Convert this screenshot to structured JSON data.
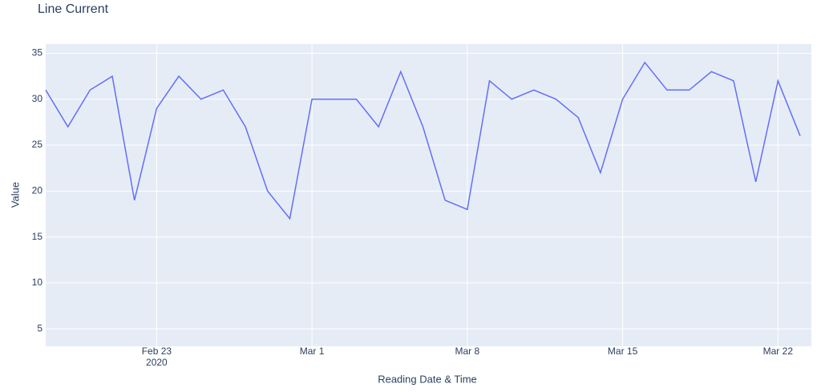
{
  "chart_data": {
    "type": "line",
    "title": "Line Current",
    "x_label": "Reading Date & Time",
    "y_label": "Value",
    "x": [
      "2020-02-18",
      "2020-02-19",
      "2020-02-20",
      "2020-02-21",
      "2020-02-22",
      "2020-02-23",
      "2020-02-24",
      "2020-02-25",
      "2020-02-26",
      "2020-02-27",
      "2020-02-28",
      "2020-02-29",
      "2020-03-01",
      "2020-03-02",
      "2020-03-03",
      "2020-03-04",
      "2020-03-05",
      "2020-03-06",
      "2020-03-07",
      "2020-03-08",
      "2020-03-09",
      "2020-03-10",
      "2020-03-11",
      "2020-03-12",
      "2020-03-13",
      "2020-03-14",
      "2020-03-15",
      "2020-03-16",
      "2020-03-17",
      "2020-03-18",
      "2020-03-19",
      "2020-03-20",
      "2020-03-21",
      "2020-03-22",
      "2020-03-23"
    ],
    "series": [
      {
        "name": "Value",
        "color": "#636efa",
        "values": [
          31,
          27,
          31,
          32.5,
          19,
          29,
          32.5,
          30,
          31,
          27,
          20,
          17,
          30,
          30,
          30,
          27,
          33,
          27,
          19,
          18,
          32,
          30,
          31,
          30,
          28,
          22,
          30,
          34,
          31,
          31,
          33,
          32,
          21,
          32,
          26
        ]
      }
    ],
    "xlim": [
      "2020-02-18",
      "2020-03-23"
    ],
    "xticks": [
      {
        "value": "2020-02-23",
        "label": "Feb 23"
      },
      {
        "value": "2020-03-01",
        "label": "Mar 1"
      },
      {
        "value": "2020-03-08",
        "label": "Mar 8"
      },
      {
        "value": "2020-03-15",
        "label": "Mar 15"
      },
      {
        "value": "2020-03-22",
        "label": "Mar 22"
      }
    ],
    "x_year_label": "2020",
    "ylim": [
      3.1,
      36
    ],
    "yticks": [
      5,
      10,
      15,
      20,
      25,
      30,
      35
    ],
    "grid": true,
    "plot_bg": "#e5ecf6"
  }
}
